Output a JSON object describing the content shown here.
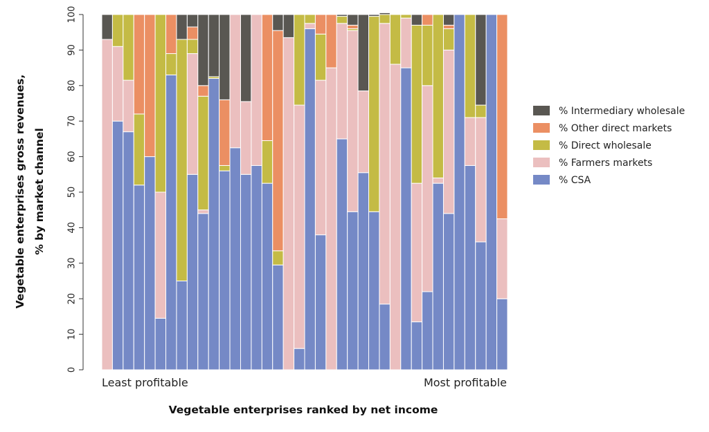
{
  "chart_data": {
    "type": "bar",
    "stacked": true,
    "ylabel_line1": "Vegetable enterprises gross revenues,",
    "ylabel_line2": "% by market channel",
    "xlabel": "Vegetable enterprises ranked by net income",
    "x_start_label": "Least profitable",
    "x_end_label": "Most profitable",
    "ylim": [
      0,
      100
    ],
    "yticks": [
      0,
      10,
      20,
      30,
      40,
      50,
      60,
      70,
      80,
      90,
      100
    ],
    "legend_position": "right",
    "series": [
      {
        "key": "csa",
        "name": "% CSA",
        "color": "#7589c6",
        "values": [
          0,
          70,
          67,
          52,
          60,
          14.5,
          83,
          25,
          55,
          44,
          82,
          56,
          62.5,
          55,
          57.5,
          52.5,
          29.5,
          0,
          6,
          96,
          38,
          0,
          65,
          44.5,
          55.5,
          44.5,
          18.5,
          0,
          85,
          13.5,
          22,
          52.5,
          44,
          100,
          57.5,
          36,
          100,
          20
        ]
      },
      {
        "key": "farmers",
        "name": "% Farmers markets",
        "color": "#ebbfbf",
        "values": [
          93,
          21,
          14.5,
          0,
          0,
          35.5,
          0,
          0,
          34,
          1,
          0,
          0,
          37.5,
          20.5,
          42.5,
          0,
          0,
          93.5,
          68.5,
          1.5,
          43.5,
          85,
          32.5,
          51,
          23,
          0,
          79,
          86,
          14,
          39,
          58,
          1.5,
          46,
          0,
          13.5,
          35,
          0,
          22.5
        ]
      },
      {
        "key": "direct",
        "name": "% Direct wholesale",
        "color": "#c4bb45",
        "values": [
          0,
          9,
          18.5,
          20,
          0,
          50,
          6,
          68,
          4,
          32,
          0.5,
          1.5,
          0,
          0,
          0,
          12,
          4,
          0,
          25.5,
          2.5,
          13,
          0,
          2,
          0.5,
          0,
          55,
          2.5,
          14,
          1,
          44.5,
          17,
          46,
          6,
          0,
          29,
          3.5,
          0,
          0
        ]
      },
      {
        "key": "other",
        "name": "% Other direct markets",
        "color": "#eb8f63",
        "values": [
          0,
          0,
          0,
          28,
          40,
          0,
          11,
          0,
          3.5,
          3,
          0,
          18.5,
          0,
          0,
          0,
          35.5,
          62,
          0,
          0,
          0,
          5.5,
          15,
          0,
          1,
          0,
          0,
          0,
          0,
          0,
          0,
          3,
          0,
          1,
          0,
          0,
          0,
          0,
          57.5
        ]
      },
      {
        "key": "intermediary",
        "name": "% Intermediary wholesale",
        "color": "#595752",
        "values": [
          7,
          0,
          0,
          0,
          0,
          0,
          0,
          7,
          3.5,
          20,
          17.5,
          24,
          0,
          24.5,
          0,
          0,
          4.5,
          6.5,
          0,
          0,
          0,
          0,
          0.5,
          3,
          21.5,
          0.5,
          0.5,
          0,
          0,
          3,
          0,
          0,
          3,
          0,
          0,
          25.5,
          0,
          0
        ]
      }
    ],
    "legend_order": [
      "intermediary",
      "other",
      "direct",
      "farmers",
      "csa"
    ]
  }
}
